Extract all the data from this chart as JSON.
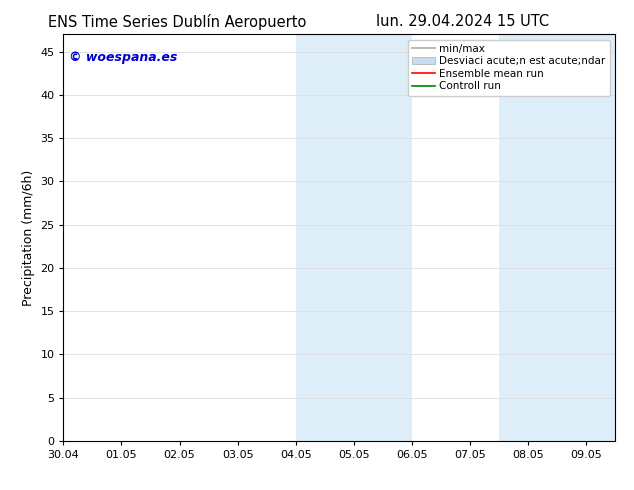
{
  "title_left_text": "ENS Time Series Dublín Aeropuerto",
  "title_right": "lun. 29.04.2024 15 UTC",
  "ylabel": "Precipitation (mm/6h)",
  "watermark": "© woespana.es",
  "watermark_color": "#0000cc",
  "xlim_left": 0,
  "xlim_right": 9.5,
  "ylim_bottom": 0,
  "ylim_top": 47,
  "xtick_labels": [
    "30.04",
    "01.05",
    "02.05",
    "03.05",
    "04.05",
    "05.05",
    "06.05",
    "07.05",
    "08.05",
    "09.05"
  ],
  "xtick_positions": [
    0,
    1,
    2,
    3,
    4,
    5,
    6,
    7,
    8,
    9
  ],
  "ytick_positions": [
    0,
    5,
    10,
    15,
    20,
    25,
    30,
    35,
    40,
    45
  ],
  "shaded_regions": [
    {
      "xmin": 4.0,
      "xmax": 5.0,
      "color": "#ddeef8"
    },
    {
      "xmin": 5.0,
      "xmax": 6.0,
      "color": "#ddeef8"
    },
    {
      "xmin": 7.5,
      "xmax": 8.5,
      "color": "#ddeef8"
    },
    {
      "xmin": 8.5,
      "xmax": 9.5,
      "color": "#ddeef8"
    }
  ],
  "legend_label_minmax": "min/max",
  "legend_label_std": "Desviaci acute;n est acute;ndar",
  "legend_label_ensemble": "Ensemble mean run",
  "legend_label_control": "Controll run",
  "legend_color_minmax": "#aaaaaa",
  "legend_color_std": "#c8ddf0",
  "legend_color_ensemble": "red",
  "legend_color_control": "green",
  "bg_color": "#ffffff",
  "grid_color": "#dddddd",
  "spine_color": "#000000",
  "title_fontsize": 10.5,
  "tick_fontsize": 8,
  "ylabel_fontsize": 9,
  "legend_fontsize": 7.5
}
